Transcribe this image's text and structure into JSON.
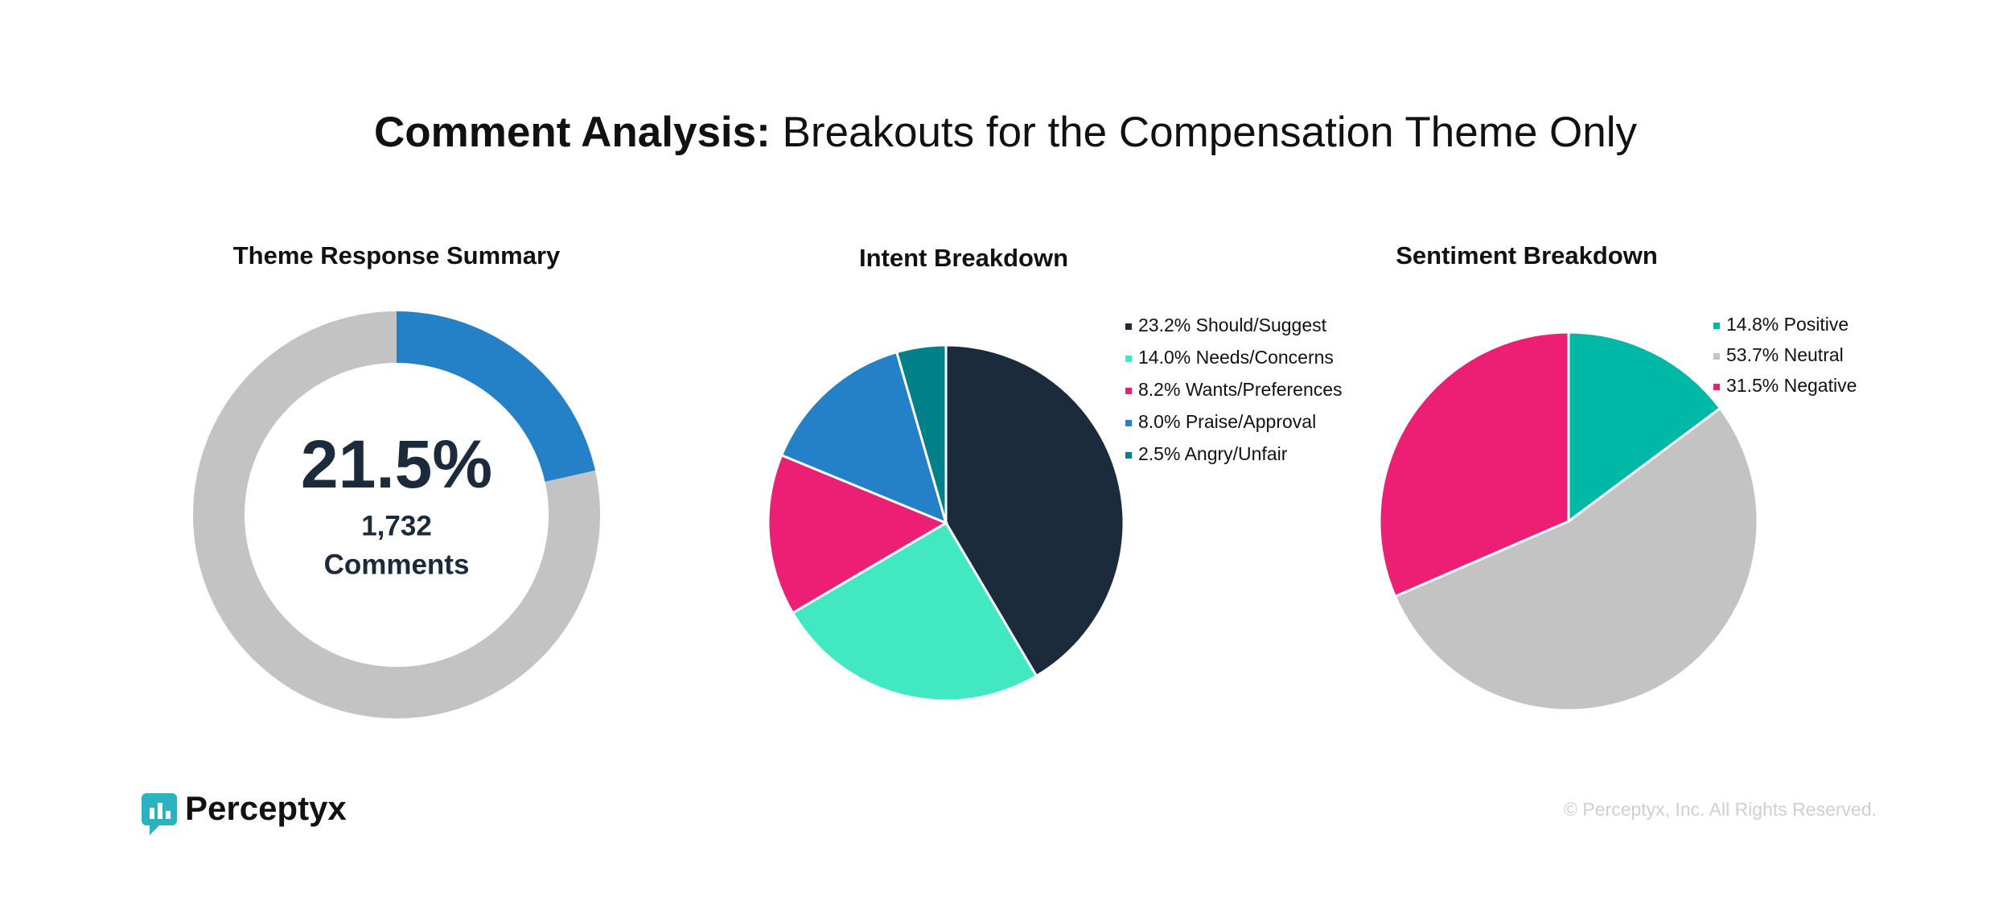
{
  "header": {
    "title_bold": "Comment Analysis:",
    "title_rest": "Breakouts for the Compensation Theme Only"
  },
  "chart_data": [
    {
      "type": "donut",
      "title": "Theme Response Summary",
      "values": [
        21.5
      ],
      "value_labels": [
        "21.5%"
      ],
      "color": "#2480c7",
      "track_color": "#c3c3c3",
      "count": {
        "value": 1732,
        "label": "1,732"
      },
      "count_text": "Comments"
    },
    {
      "type": "pie",
      "title": "Intent Breakdown",
      "categories": [
        "Should/Suggest",
        "Needs/Concerns",
        "Wants/Preferences",
        "Praise/Approval",
        "Angry/Unfair"
      ],
      "values": [
        23.2,
        14.0,
        8.2,
        8.0,
        2.5
      ],
      "value_labels": [
        "23.2%",
        "14.0%",
        "8.2%",
        "8.0%",
        "2.5%"
      ],
      "colors": [
        "#1b2b3b",
        "#41e8c2",
        "#ec1f74",
        "#2480c7",
        "#00818a"
      ]
    },
    {
      "type": "pie",
      "title": "Sentiment Breakdown",
      "categories": [
        "Positive",
        "Neutral",
        "Negative"
      ],
      "values": [
        14.8,
        53.7,
        31.5
      ],
      "value_labels": [
        "14.8%",
        "53.7%",
        "31.5%"
      ],
      "colors": [
        "#00b8a6",
        "#c3c3c3",
        "#ec1f74"
      ]
    }
  ],
  "footer": {
    "brand": "Perceptyx",
    "copyright": "© Perceptyx, Inc. All Rights Reserved."
  }
}
